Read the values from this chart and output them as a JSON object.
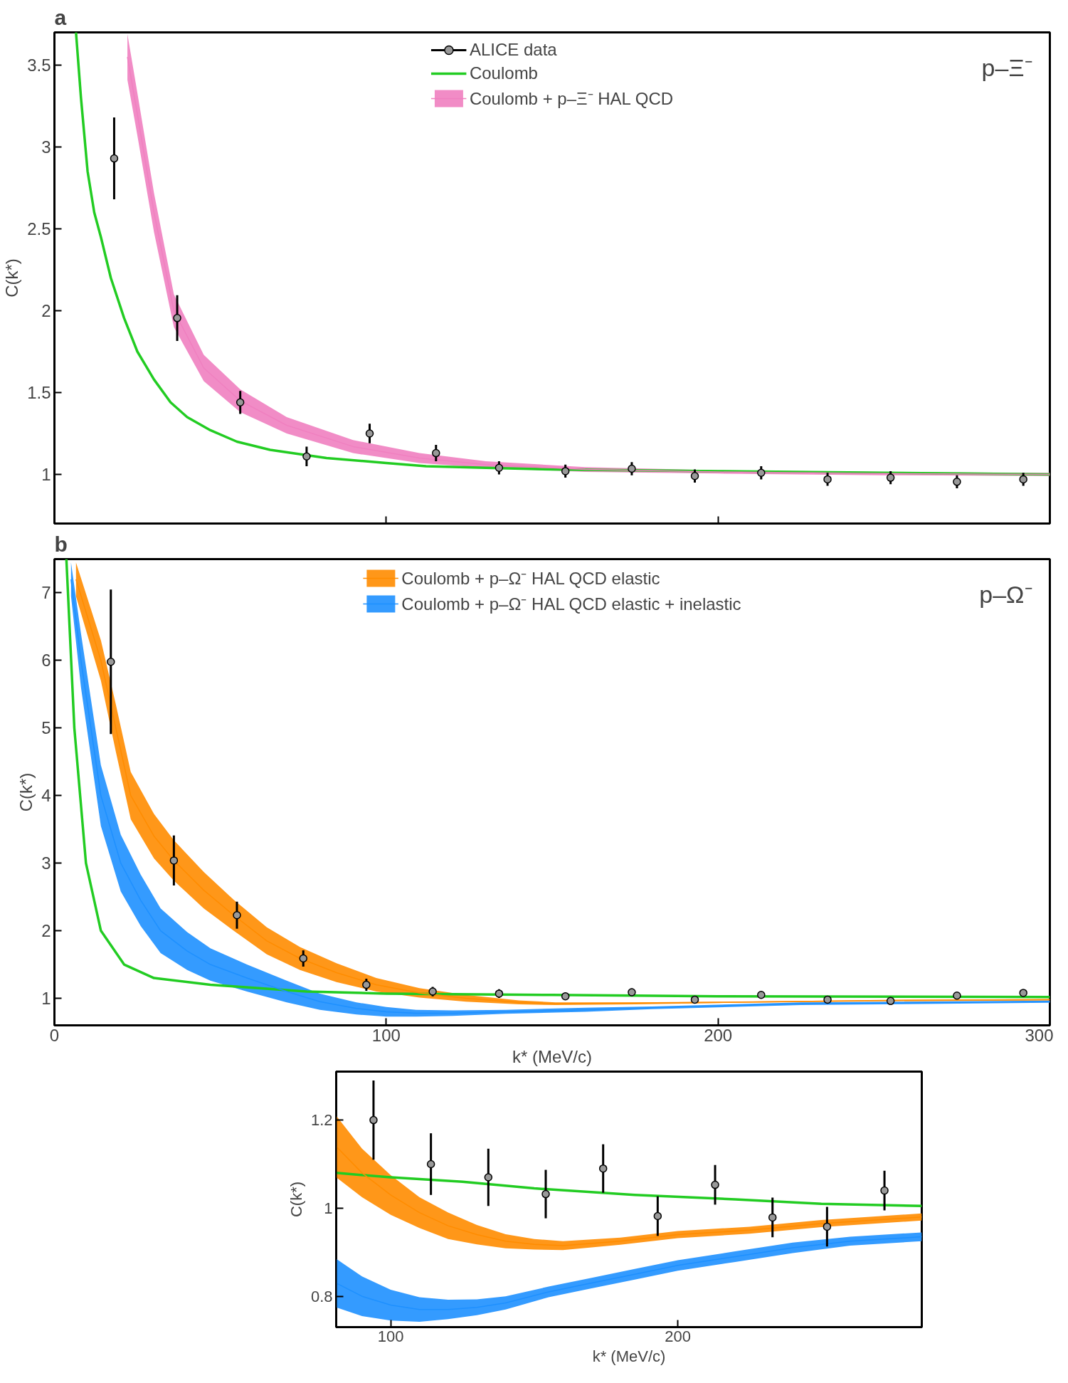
{
  "chart_data": [
    {
      "type": "scatter",
      "title": "a",
      "ylabel": "C(k*)",
      "xlim": [
        0,
        300
      ],
      "ylim": [
        0.7,
        3.7
      ],
      "xticks": [
        0,
        100,
        200,
        300
      ],
      "yticks": [
        1,
        1.5,
        2,
        2.5,
        3,
        3.5
      ],
      "tick_labels": "y",
      "legend": "top",
      "annotations": [
        "p–Ξ⁻"
      ],
      "series": [
        {
          "name": "ALICE data",
          "marker": "circle",
          "color": "#999999",
          "x": [
            18,
            37,
            56,
            76,
            95,
            115,
            134,
            154,
            174,
            193,
            213,
            233,
            252,
            272,
            292
          ],
          "values": [
            2.93,
            1.955,
            1.44,
            1.11,
            1.25,
            1.13,
            1.04,
            1.02,
            1.035,
            0.99,
            1.01,
            0.97,
            0.98,
            0.955,
            0.97
          ],
          "errors": [
            0.25,
            0.14,
            0.07,
            0.06,
            0.06,
            0.05,
            0.04,
            0.04,
            0.04,
            0.04,
            0.04,
            0.04,
            0.04,
            0.04,
            0.04
          ]
        },
        {
          "name": "Coulomb",
          "type": "line",
          "color": "#22cc22",
          "x": [
            6.5,
            8,
            10,
            12,
            14,
            17,
            21,
            25,
            30,
            35,
            40,
            47,
            55,
            65,
            82,
            100,
            112,
            130,
            150,
            175,
            200,
            250,
            300
          ],
          "values": [
            3.7,
            3.3,
            2.85,
            2.6,
            2.45,
            2.2,
            1.955,
            1.75,
            1.58,
            1.44,
            1.35,
            1.27,
            1.2,
            1.15,
            1.1,
            1.07,
            1.05,
            1.04,
            1.03,
            1.025,
            1.02,
            1.01,
            1.0
          ]
        },
        {
          "name": "Coulomb + p–Ξ⁻ HAL QCD",
          "type": "line",
          "color": "#f080c0",
          "x": [
            22,
            25,
            30,
            36,
            45,
            56,
            70,
            90,
            110,
            130,
            160,
            200,
            250,
            300
          ],
          "values": [
            3.55,
            3.2,
            2.6,
            2.0,
            1.65,
            1.45,
            1.3,
            1.17,
            1.1,
            1.06,
            1.03,
            1.015,
            1.005,
            1.0
          ],
          "lower": [
            3.41,
            3.07,
            2.48,
            1.9,
            1.57,
            1.38,
            1.25,
            1.13,
            1.07,
            1.04,
            1.015,
            1.005,
            0.995,
            0.99
          ],
          "upper": [
            3.69,
            3.33,
            2.72,
            2.1,
            1.73,
            1.52,
            1.35,
            1.21,
            1.13,
            1.08,
            1.045,
            1.025,
            1.015,
            1.01
          ]
        }
      ]
    },
    {
      "type": "scatter",
      "title": "b",
      "xlabel": "k* (MeV/c)",
      "ylabel": "C(k*)",
      "xlim": [
        0,
        300
      ],
      "ylim": [
        0.6,
        7.5
      ],
      "xticks": [
        0,
        100,
        200,
        300
      ],
      "yticks": [
        1,
        2,
        3,
        4,
        5,
        6,
        7
      ],
      "legend": "top",
      "annotations": [
        "p–Ω⁻"
      ],
      "series": [
        {
          "marker": "circle",
          "color": "#999999",
          "x": [
            17,
            36,
            55,
            75,
            94,
            114,
            134,
            154,
            174,
            193,
            213,
            233,
            252,
            272,
            292
          ],
          "values": [
            5.98,
            3.04,
            2.23,
            1.59,
            1.2,
            1.1,
            1.07,
            1.03,
            1.09,
            0.98,
            1.05,
            0.98,
            0.96,
            1.04,
            1.08
          ],
          "errors": [
            1.07,
            0.37,
            0.2,
            0.12,
            0.09,
            0.07,
            0.065,
            0.055,
            0.055,
            0.045,
            0.045,
            0.045,
            0.045,
            0.045,
            0.05
          ]
        },
        {
          "type": "line",
          "color": "#22cc22",
          "x": [
            3.6,
            6,
            9.5,
            14,
            21,
            30,
            47,
            76,
            100,
            150,
            200,
            300
          ],
          "values": [
            7.5,
            5,
            3,
            2,
            1.5,
            1.3,
            1.2,
            1.1,
            1.07,
            1.05,
            1.03,
            1.02
          ]
        },
        {
          "name": "Coulomb + p–Ω⁻ HAL QCD elastic",
          "type": "line",
          "color": "#ff8c00",
          "x": [
            6.5,
            14,
            18.5,
            23,
            30,
            36,
            45,
            54,
            64,
            74,
            85,
            97,
            110,
            124,
            140,
            151,
            175,
            200,
            250,
            300
          ],
          "values": [
            7.2,
            6,
            5,
            4,
            3.4,
            3.04,
            2.6,
            2.23,
            1.85,
            1.59,
            1.38,
            1.2,
            1.08,
            1.0,
            0.94,
            0.92,
            0.93,
            0.94,
            0.97,
            0.98
          ],
          "lower": [
            6.95,
            5.7,
            4.65,
            3.65,
            3.07,
            2.74,
            2.33,
            2.0,
            1.65,
            1.42,
            1.24,
            1.1,
            1.01,
            0.95,
            0.91,
            0.9,
            0.91,
            0.93,
            0.955,
            0.97
          ],
          "upper": [
            7.45,
            6.3,
            5.35,
            4.35,
            3.73,
            3.34,
            2.87,
            2.46,
            2.05,
            1.76,
            1.52,
            1.3,
            1.15,
            1.05,
            0.97,
            0.94,
            0.94,
            0.95,
            0.975,
            0.99
          ]
        },
        {
          "name": "Coulomb + p–Ω⁻ HAL QCD elastic + inelastic",
          "type": "line",
          "color": "#1e90ff",
          "x": [
            5,
            8,
            14,
            20,
            26,
            32,
            40,
            47,
            58,
            70,
            80,
            91,
            100,
            109,
            120,
            136,
            160,
            180,
            225,
            300
          ],
          "values": [
            7.2,
            6,
            4,
            3,
            2.45,
            2.0,
            1.7,
            1.5,
            1.3,
            1.1,
            0.95,
            0.85,
            0.8,
            0.78,
            0.78,
            0.8,
            0.83,
            0.86,
            0.92,
            0.95
          ],
          "lower": [
            6.95,
            5.6,
            3.55,
            2.58,
            2.07,
            1.67,
            1.42,
            1.26,
            1.1,
            0.94,
            0.83,
            0.76,
            0.73,
            0.73,
            0.74,
            0.77,
            0.8,
            0.84,
            0.9,
            0.935
          ],
          "upper": [
            7.45,
            6.4,
            4.45,
            3.42,
            2.83,
            2.33,
            1.98,
            1.74,
            1.5,
            1.26,
            1.07,
            0.94,
            0.87,
            0.83,
            0.82,
            0.83,
            0.86,
            0.88,
            0.94,
            0.965
          ]
        }
      ]
    },
    {
      "type": "scatter",
      "xlabel": "k* (MeV/c)",
      "ylabel": "C(k*)",
      "xlim": [
        81,
        285
      ],
      "ylim": [
        0.73,
        1.31
      ],
      "xticks": [
        100,
        200
      ],
      "yticks": [
        0.8,
        1,
        1.2
      ],
      "series": [
        {
          "marker": "circle",
          "color": "#999999",
          "x": [
            94,
            114,
            134,
            154,
            174,
            193,
            213,
            233,
            252,
            272
          ],
          "values": [
            1.2,
            1.1,
            1.07,
            1.032,
            1.09,
            0.982,
            1.053,
            0.979,
            0.958,
            1.04
          ],
          "errors": [
            0.09,
            0.07,
            0.065,
            0.055,
            0.055,
            0.045,
            0.045,
            0.045,
            0.045,
            0.045
          ]
        },
        {
          "type": "line",
          "color": "#22cc22",
          "x": [
            81,
            100,
            125,
            150,
            185,
            220,
            250,
            285
          ],
          "values": [
            1.08,
            1.07,
            1.06,
            1.045,
            1.03,
            1.02,
            1.01,
            1.005
          ]
        },
        {
          "type": "line",
          "color": "#ff8c00",
          "x": [
            81,
            90,
            100,
            110,
            120,
            130,
            140,
            150,
            160,
            180,
            200,
            225,
            250,
            285
          ],
          "values": [
            1.14,
            1.08,
            1.03,
            0.99,
            0.96,
            0.94,
            0.925,
            0.918,
            0.915,
            0.925,
            0.94,
            0.95,
            0.965,
            0.98
          ],
          "lower": [
            1.07,
            1.025,
            0.985,
            0.955,
            0.93,
            0.918,
            0.909,
            0.906,
            0.905,
            0.917,
            0.932,
            0.942,
            0.957,
            0.972
          ],
          "upper": [
            1.21,
            1.135,
            1.075,
            1.025,
            0.99,
            0.962,
            0.941,
            0.93,
            0.925,
            0.933,
            0.948,
            0.958,
            0.973,
            0.988
          ]
        },
        {
          "type": "line",
          "color": "#1e90ff",
          "x": [
            81,
            90,
            100,
            110,
            120,
            130,
            140,
            155,
            170,
            185,
            200,
            220,
            240,
            260,
            285
          ],
          "values": [
            0.83,
            0.8,
            0.78,
            0.77,
            0.77,
            0.775,
            0.785,
            0.81,
            0.83,
            0.85,
            0.87,
            0.89,
            0.91,
            0.925,
            0.935
          ],
          "lower": [
            0.775,
            0.755,
            0.745,
            0.742,
            0.748,
            0.757,
            0.77,
            0.798,
            0.818,
            0.838,
            0.858,
            0.878,
            0.898,
            0.915,
            0.925
          ],
          "upper": [
            0.885,
            0.845,
            0.815,
            0.798,
            0.792,
            0.793,
            0.8,
            0.822,
            0.842,
            0.862,
            0.882,
            0.902,
            0.922,
            0.935,
            0.945
          ]
        }
      ]
    }
  ]
}
